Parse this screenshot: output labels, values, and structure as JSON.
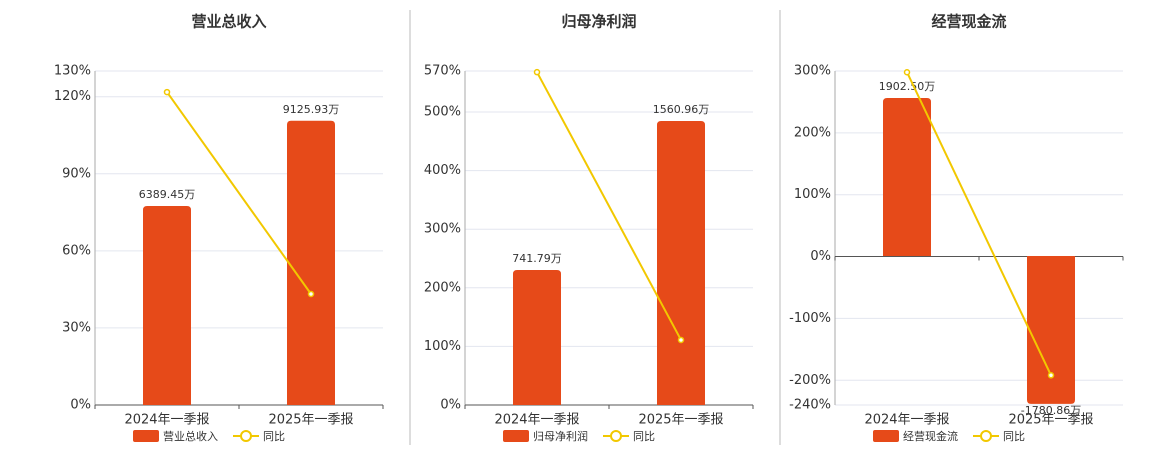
{
  "chart_data": [
    {
      "type": "combo",
      "title": "营业总收入",
      "categories": [
        "2024年一季报",
        "2025年一季报"
      ],
      "series": [
        {
          "name": "营业总收入",
          "type": "bar",
          "axis": "y2",
          "color": "#e64a19",
          "values": [
            6389.45,
            9125.93
          ],
          "value_labels": [
            "6389.45万",
            "9125.93万"
          ]
        },
        {
          "name": "同比",
          "type": "line",
          "color": "#f2c800",
          "values": [
            121.8,
            43.2
          ]
        }
      ],
      "ylim": [
        0,
        130
      ],
      "yticks": [
        {
          "value": 0,
          "label": "0%"
        },
        {
          "value": 30,
          "label": "30%"
        },
        {
          "value": 60,
          "label": "60%"
        },
        {
          "value": 90,
          "label": "90%"
        },
        {
          "value": 120,
          "label": "120%"
        },
        {
          "value": 130,
          "label": "130%"
        }
      ],
      "y2lim": [
        0,
        10724
      ],
      "grid": true
    },
    {
      "type": "combo",
      "title": "归母净利润",
      "categories": [
        "2024年一季报",
        "2025年一季报"
      ],
      "series": [
        {
          "name": "归母净利润",
          "type": "bar",
          "axis": "y2",
          "color": "#e64a19",
          "values": [
            741.79,
            1560.96
          ],
          "value_labels": [
            "741.79万",
            "1560.96万"
          ]
        },
        {
          "name": "同比",
          "type": "line",
          "color": "#f2c800",
          "values": [
            568,
            111
          ]
        }
      ],
      "ylim": [
        0,
        570
      ],
      "yticks": [
        {
          "value": 0,
          "label": "0%"
        },
        {
          "value": 100,
          "label": "100%"
        },
        {
          "value": 200,
          "label": "200%"
        },
        {
          "value": 300,
          "label": "300%"
        },
        {
          "value": 400,
          "label": "400%"
        },
        {
          "value": 500,
          "label": "500%"
        },
        {
          "value": 570,
          "label": "570%"
        }
      ],
      "y2lim": [
        0,
        1836
      ],
      "grid": true
    },
    {
      "type": "combo",
      "title": "经营现金流",
      "categories": [
        "2024年一季报",
        "2025年一季报"
      ],
      "series": [
        {
          "name": "经营现金流",
          "type": "bar",
          "axis": "y2",
          "color": "#e64a19",
          "values": [
            1902.5,
            -1780.86
          ],
          "value_labels": [
            "1902.50万",
            "-1780.86万"
          ]
        },
        {
          "name": "同比",
          "type": "line",
          "color": "#f2c800",
          "values": [
            298,
            -192
          ]
        }
      ],
      "ylim": [
        -240,
        300
      ],
      "yticks": [
        {
          "value": -240,
          "label": "-240%"
        },
        {
          "value": -200,
          "label": "-200%"
        },
        {
          "value": -100,
          "label": "-100%"
        },
        {
          "value": 0,
          "label": "0%"
        },
        {
          "value": 100,
          "label": "100%"
        },
        {
          "value": 200,
          "label": "200%"
        },
        {
          "value": 300,
          "label": "300%"
        }
      ],
      "y2lim": [
        -1794,
        2228
      ],
      "grid": true
    }
  ]
}
